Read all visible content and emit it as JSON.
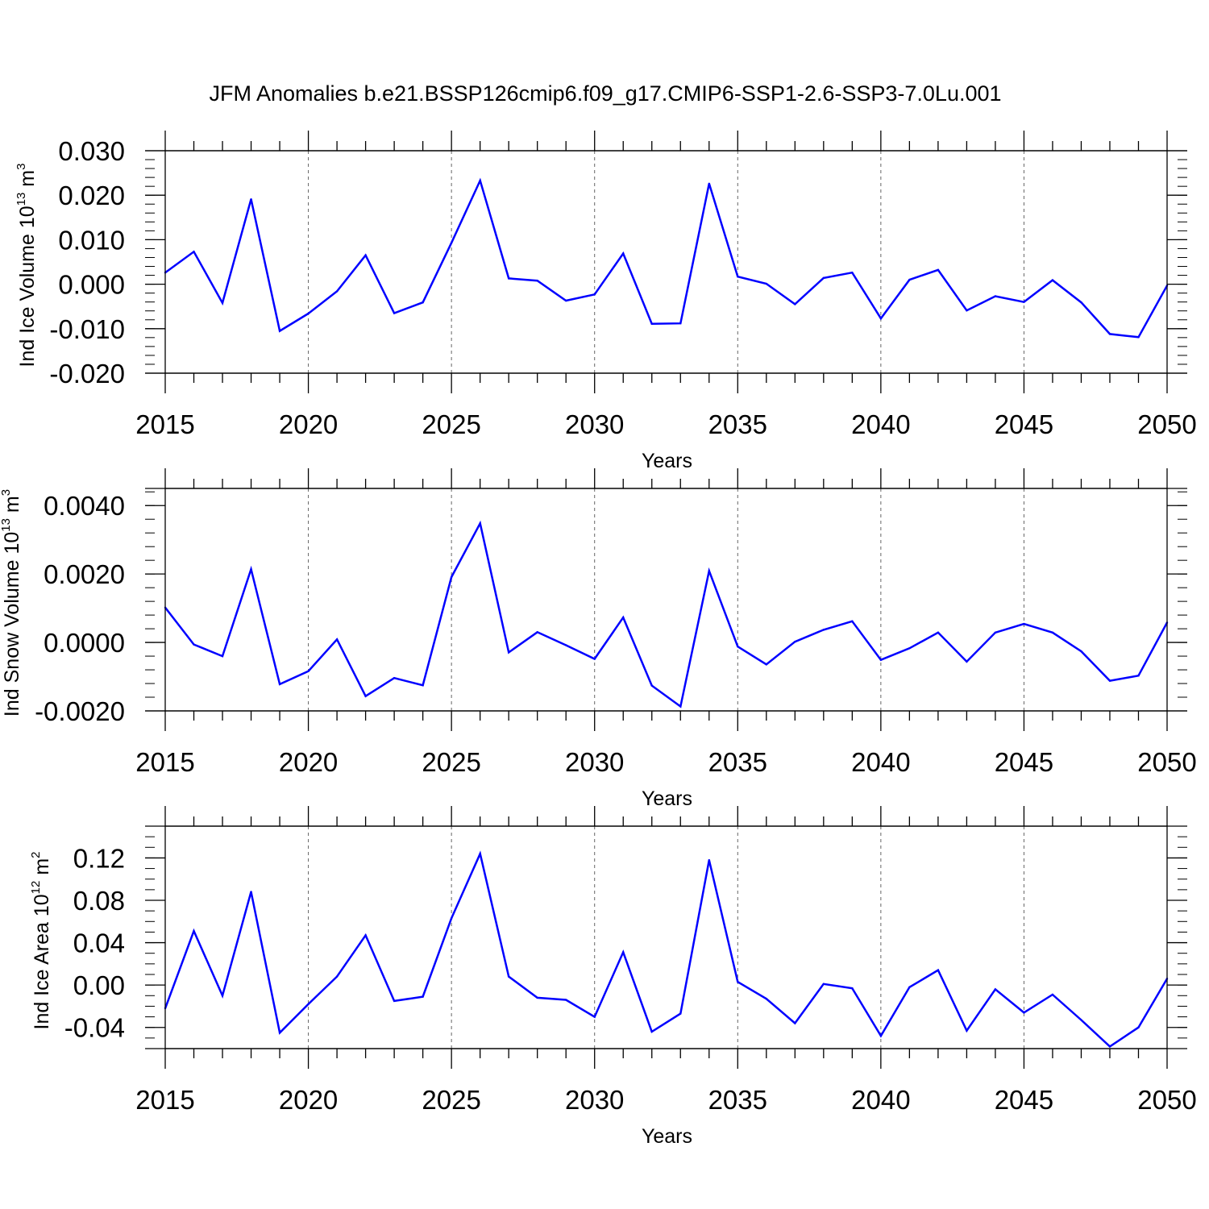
{
  "figure": {
    "title": "JFM Anomalies b.e21.BSSP126cmip6.f09_g17.CMIP6-SSP1-2.6-SSP3-7.0Lu.001",
    "line_color": "#0000ff"
  },
  "chart_data": [
    {
      "type": "line",
      "id": "ice-volume",
      "ylabel": {
        "text": "Ind Ice Volume 10",
        "sup1": "13",
        "mid": " m",
        "sup2": "3"
      },
      "xlabel": "Years",
      "xlim": [
        2015,
        2050
      ],
      "ylim": [
        -0.02,
        0.03
      ],
      "x_tick_labels": [
        "2015",
        "2020",
        "2025",
        "2030",
        "2035",
        "2040",
        "2045",
        "2050"
      ],
      "y_ticks": [
        -0.02,
        -0.01,
        0.0,
        0.01,
        0.02,
        0.03
      ],
      "y_tick_labels": [
        "-0.020",
        "-0.010",
        "0.000",
        "0.010",
        "0.020",
        "0.030"
      ],
      "y_minor_step": 0.002,
      "grid": "vertical dashed at major x ticks",
      "x": [
        2015,
        2016,
        2017,
        2018,
        2019,
        2020,
        2021,
        2022,
        2023,
        2024,
        2025,
        2026,
        2027,
        2028,
        2029,
        2030,
        2031,
        2032,
        2033,
        2034,
        2035,
        2036,
        2037,
        2038,
        2039,
        2040,
        2041,
        2042,
        2043,
        2044,
        2045,
        2046,
        2047,
        2048,
        2049,
        2050
      ],
      "values": [
        0.0026,
        0.0073,
        -0.0042,
        0.0191,
        -0.0105,
        -0.0066,
        -0.0016,
        0.0065,
        -0.0065,
        -0.0041,
        0.0093,
        0.0233,
        0.0013,
        0.0008,
        -0.0037,
        -0.0023,
        0.0069,
        -0.0089,
        -0.0088,
        0.0226,
        0.0017,
        0.0001,
        -0.0045,
        0.0014,
        0.0026,
        -0.0077,
        0.001,
        0.0032,
        -0.0059,
        -0.0027,
        -0.004,
        0.0009,
        -0.0041,
        -0.0112,
        -0.0119,
        -0.0003
      ]
    },
    {
      "type": "line",
      "id": "snow-volume",
      "ylabel": {
        "text": "Ind Snow Volume 10",
        "sup1": "13",
        "mid": " m",
        "sup2": "3"
      },
      "xlabel": "Years",
      "xlim": [
        2015,
        2050
      ],
      "ylim": [
        -0.002,
        0.0045
      ],
      "x_tick_labels": [
        "2015",
        "2020",
        "2025",
        "2030",
        "2035",
        "2040",
        "2045",
        "2050"
      ],
      "y_ticks": [
        -0.002,
        0.0,
        0.002,
        0.004
      ],
      "y_tick_labels": [
        "-0.0020",
        "0.0000",
        "0.0020",
        "0.0040"
      ],
      "y_minor_step": 0.0004,
      "grid": "vertical dashed at major x ticks",
      "x": [
        2015,
        2016,
        2017,
        2018,
        2019,
        2020,
        2021,
        2022,
        2023,
        2024,
        2025,
        2026,
        2027,
        2028,
        2029,
        2030,
        2031,
        2032,
        2033,
        2034,
        2035,
        2036,
        2037,
        2038,
        2039,
        2040,
        2041,
        2042,
        2043,
        2044,
        2045,
        2046,
        2047,
        2048,
        2049,
        2050
      ],
      "values": [
        0.00102,
        -6e-05,
        -0.0004,
        0.00214,
        -0.00122,
        -0.00084,
        9e-05,
        -0.00157,
        -0.00104,
        -0.00125,
        0.00191,
        0.00348,
        -0.00029,
        0.0003,
        -8e-05,
        -0.00048,
        0.00073,
        -0.00126,
        -0.00187,
        0.00209,
        -0.00012,
        -0.00064,
        2e-05,
        0.00037,
        0.00062,
        -0.00051,
        -0.00017,
        0.00029,
        -0.00056,
        0.00029,
        0.00054,
        0.00029,
        -0.00026,
        -0.00112,
        -0.00097,
        0.00058
      ]
    },
    {
      "type": "line",
      "id": "ice-area",
      "ylabel": {
        "text": "Ind Ice Area 10",
        "sup1": "12",
        "mid": " m",
        "sup2": "2"
      },
      "xlabel": "Years",
      "xlim": [
        2015,
        2050
      ],
      "ylim": [
        -0.06,
        0.15
      ],
      "x_tick_labels": [
        "2015",
        "2020",
        "2025",
        "2030",
        "2035",
        "2040",
        "2045",
        "2050"
      ],
      "y_ticks": [
        -0.04,
        0.0,
        0.04,
        0.08,
        0.12
      ],
      "y_tick_labels": [
        "-0.04",
        "0.00",
        "0.04",
        "0.08",
        "0.12"
      ],
      "y_minor_step": 0.01,
      "grid": "vertical dashed at major x ticks",
      "x": [
        2015,
        2016,
        2017,
        2018,
        2019,
        2020,
        2021,
        2022,
        2023,
        2024,
        2025,
        2026,
        2027,
        2028,
        2029,
        2030,
        2031,
        2032,
        2033,
        2034,
        2035,
        2036,
        2037,
        2038,
        2039,
        2040,
        2041,
        2042,
        2043,
        2044,
        2045,
        2046,
        2047,
        2048,
        2049,
        2050
      ],
      "values": [
        -0.022,
        0.051,
        -0.01,
        0.088,
        -0.045,
        -0.018,
        0.008,
        0.047,
        -0.015,
        -0.011,
        0.063,
        0.124,
        0.008,
        -0.012,
        -0.014,
        -0.03,
        0.031,
        -0.044,
        -0.027,
        0.118,
        0.003,
        -0.013,
        -0.036,
        0.001,
        -0.003,
        -0.048,
        -0.002,
        0.014,
        -0.043,
        -0.004,
        -0.026,
        -0.009,
        -0.033,
        -0.058,
        -0.04,
        0.006
      ]
    }
  ]
}
